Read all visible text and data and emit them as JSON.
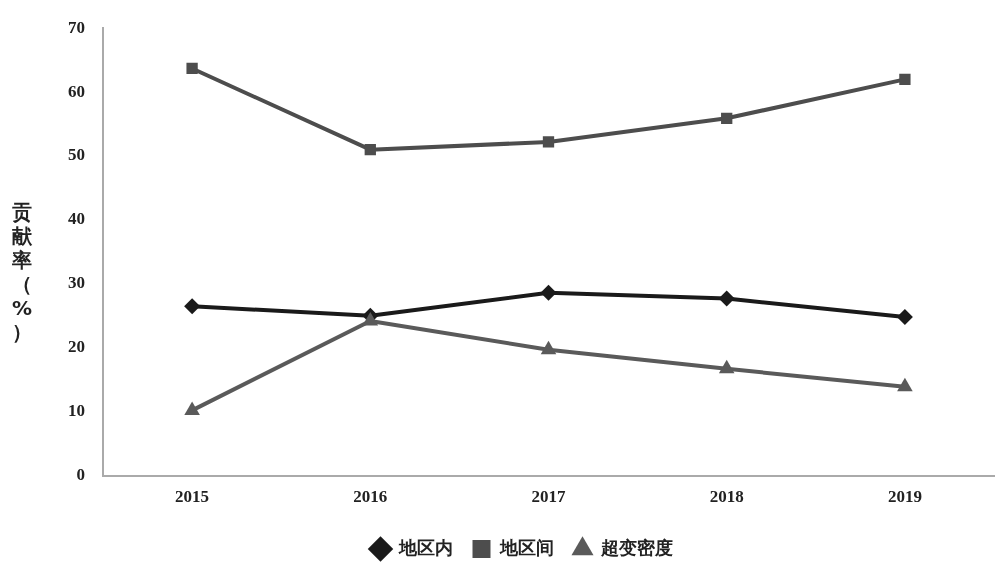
{
  "chart_data": {
    "type": "line",
    "ylabel": "贡献率（%）",
    "categories": [
      "2015",
      "2016",
      "2017",
      "2018",
      "2019"
    ],
    "series": [
      {
        "name": "地区内",
        "color": "#1a1a1a",
        "marker": "diamond",
        "values": [
          26.5,
          25.0,
          28.6,
          27.7,
          24.8
        ]
      },
      {
        "name": "地区间",
        "color": "#4d4d4d",
        "marker": "square",
        "values": [
          63.7,
          51.0,
          52.2,
          55.9,
          62.0
        ]
      },
      {
        "name": "超变密度",
        "color": "#5a5a5a",
        "marker": "triangle",
        "values": [
          10.2,
          24.2,
          19.7,
          16.7,
          13.9
        ]
      }
    ],
    "ylim": [
      0,
      70
    ],
    "yticks": [
      0,
      10,
      20,
      30,
      40,
      50,
      60,
      70
    ],
    "grid": false,
    "legend": "bottom",
    "line_style": "solid"
  }
}
